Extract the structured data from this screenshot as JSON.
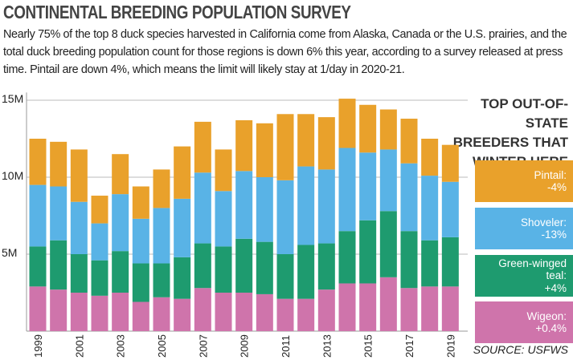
{
  "chart_data": {
    "type": "stacked-bar",
    "title": "CONTINENTAL BREEDING POPULATION SURVEY",
    "subtitle": "Nearly 75% of the top 8 duck species harvested in California come from Alaska, Canada or the U.S. prairies, and the total duck breeding population count for those regions is down 6% this year, according to a survey released at press time. Pintail are down 4%, which means the limit will likely stay at 1/day in 2020-21.",
    "legend_title": "TOP OUT-OF-STATE BREEDERS THAT WINTER HERE",
    "source": "SOURCE: USFWS",
    "categories": [
      "1999",
      null,
      "2001",
      null,
      "2003",
      null,
      "2005",
      null,
      "2007",
      null,
      "2009",
      null,
      "2011",
      null,
      "2013",
      null,
      "2015",
      null,
      "2017",
      null,
      "2019"
    ],
    "series": [
      {
        "name": "Wigeon:",
        "change": "+0.4%",
        "color": "#cf74ab",
        "values": [
          2.9,
          2.7,
          2.5,
          2.3,
          2.5,
          1.9,
          2.2,
          2.1,
          2.8,
          2.5,
          2.5,
          2.4,
          2.1,
          2.1,
          2.7,
          3.1,
          3.1,
          3.5,
          2.8,
          2.9,
          2.9
        ]
      },
      {
        "name": "Green-winged teal:",
        "change": "+4%",
        "color": "#1e9b6f",
        "values": [
          2.6,
          3.2,
          2.5,
          2.3,
          2.7,
          2.5,
          2.2,
          2.7,
          2.9,
          3.0,
          3.5,
          3.4,
          2.9,
          3.5,
          3.0,
          3.4,
          4.1,
          4.3,
          3.7,
          3.0,
          3.2
        ]
      },
      {
        "name": "Shoveler:",
        "change": "-13%",
        "color": "#59b3e6",
        "values": [
          4.0,
          3.5,
          3.4,
          2.4,
          3.7,
          2.9,
          3.6,
          3.8,
          4.6,
          3.6,
          4.4,
          4.2,
          4.8,
          5.1,
          4.8,
          5.4,
          4.4,
          4.0,
          4.4,
          4.2,
          3.6
        ]
      },
      {
        "name": "Pintail:",
        "change": "-4%",
        "color": "#e9a12b",
        "values": [
          3.0,
          2.9,
          3.4,
          1.8,
          2.6,
          2.1,
          2.5,
          3.4,
          3.3,
          2.7,
          3.3,
          3.5,
          4.3,
          3.4,
          3.4,
          3.2,
          3.1,
          2.6,
          2.9,
          2.4,
          2.4
        ]
      }
    ],
    "ylim": [
      0,
      15.5
    ],
    "yticks": [
      {
        "value": 5,
        "label": "5M"
      },
      {
        "value": 10,
        "label": "10M"
      },
      {
        "value": 15,
        "label": "15M"
      }
    ],
    "grid": true
  }
}
